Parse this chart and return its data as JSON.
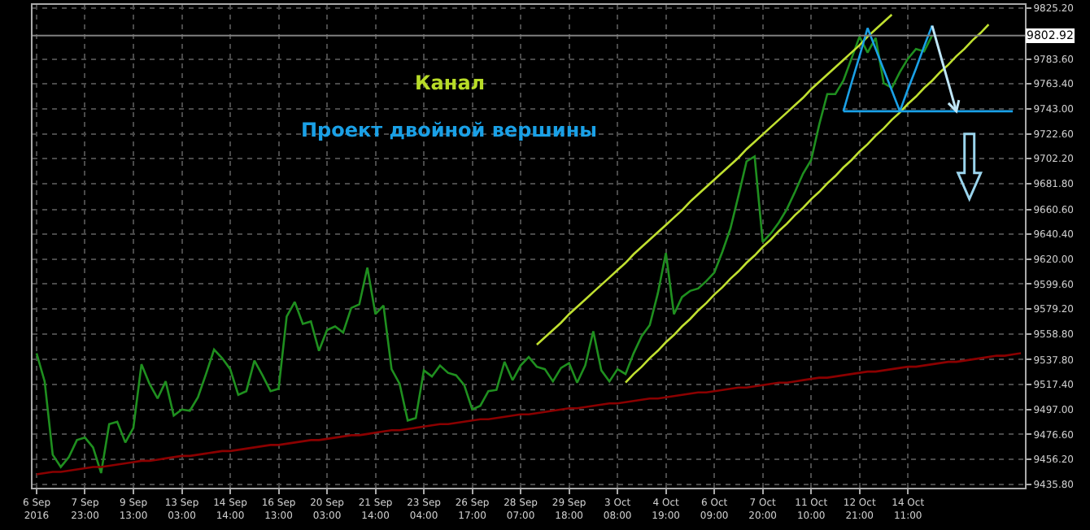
{
  "chart_data": {
    "type": "line",
    "annotations": [
      "Канал",
      "Проект двойной вершины"
    ],
    "categories": [
      "6 Sep 2016",
      null,
      null,
      null,
      null,
      null,
      "7 Sep 23:00",
      null,
      null,
      null,
      null,
      null,
      "9 Sep 13:00",
      null,
      null,
      null,
      null,
      null,
      "13 Sep 03:00",
      null,
      null,
      null,
      null,
      null,
      "14 Sep 14:00",
      null,
      null,
      null,
      null,
      null,
      "16 Sep 13:00",
      null,
      null,
      null,
      null,
      null,
      "20 Sep 03:00",
      null,
      null,
      null,
      null,
      null,
      "21 Sep 14:00",
      null,
      null,
      null,
      null,
      null,
      "23 Sep 04:00",
      null,
      null,
      null,
      null,
      null,
      "26 Sep 17:00",
      null,
      null,
      null,
      null,
      null,
      "28 Sep 07:00",
      null,
      null,
      null,
      null,
      null,
      "29 Sep 18:00",
      null,
      null,
      null,
      null,
      null,
      "3 Oct 08:00",
      null,
      null,
      null,
      null,
      null,
      "4 Oct 19:00",
      null,
      null,
      null,
      null,
      null,
      "6 Oct 09:00",
      null,
      null,
      null,
      null,
      null,
      "7 Oct 20:00",
      null,
      null,
      null,
      null,
      null,
      "11 Oct 10:00",
      null,
      null,
      null,
      null,
      null,
      "12 Oct 21:00",
      null,
      null,
      null,
      null,
      null,
      "14 Oct 11:00",
      null,
      null,
      null,
      null,
      null,
      null,
      null,
      null,
      null,
      null,
      null,
      null,
      null,
      null
    ],
    "ylim": [
      9433,
      9828
    ],
    "yticks": [
      {
        "value": 9435.8,
        "label": "9435.80"
      },
      {
        "value": 9456.2,
        "label": "9456.20"
      },
      {
        "value": 9476.6,
        "label": "9476.60"
      },
      {
        "value": 9497.0,
        "label": "9497.00"
      },
      {
        "value": 9517.4,
        "label": "9517.40"
      },
      {
        "value": 9537.8,
        "label": "9537.80"
      },
      {
        "value": 9558.8,
        "label": "9558.80"
      },
      {
        "value": 9579.2,
        "label": "9579.20"
      },
      {
        "value": 9599.6,
        "label": "9599.60"
      },
      {
        "value": 9620.0,
        "label": "9620.00"
      },
      {
        "value": 9640.4,
        "label": "9640.40"
      },
      {
        "value": 9660.6,
        "label": "9660.60"
      },
      {
        "value": 9681.8,
        "label": "9681.80"
      },
      {
        "value": 9702.2,
        "label": "9702.20"
      },
      {
        "value": 9722.6,
        "label": "9722.60"
      },
      {
        "value": 9743.0,
        "label": "9743.00"
      },
      {
        "value": 9763.4,
        "label": "9763.40"
      },
      {
        "value": 9783.6,
        "label": "9783.60"
      },
      {
        "value": 9825.2,
        "label": "9825.20"
      }
    ],
    "grid": true,
    "marker": "none",
    "line_style": "solid",
    "ref_lines": [
      {
        "axis": "y",
        "value": 9802.92,
        "label": "9802.92",
        "color": "#808080"
      }
    ],
    "series": [
      {
        "color": "#1f8f1f",
        "values": [
          9543,
          9520,
          9460,
          9450,
          9458,
          9472,
          9474,
          9466,
          9445,
          9485,
          9487,
          9470,
          9482,
          9534,
          9518,
          9506,
          9520,
          9492,
          9497,
          9496,
          9507,
          9526,
          9546,
          9539,
          9530,
          9509,
          9512,
          9537,
          9525,
          9512,
          9514,
          9573,
          9585,
          9567,
          9569,
          9545,
          9562,
          9565,
          9560,
          9580,
          9583,
          9613,
          9575,
          9582,
          9530,
          9518,
          9488,
          9490,
          9529,
          9524,
          9533,
          9527,
          9525,
          9517,
          9497,
          9500,
          9512,
          9513,
          9536,
          9521,
          9533,
          9540,
          9532,
          9530,
          9520,
          9531,
          9535,
          9519,
          9533,
          9561,
          9529,
          9520,
          9530,
          9526,
          9543,
          9557,
          9566,
          9592,
          9625,
          9575,
          9589,
          9594,
          9596,
          9602,
          9609,
          9626,
          9645,
          9672,
          9700,
          9704,
          9634,
          9641,
          9650,
          9661,
          9675,
          9690,
          9701,
          9730,
          9755,
          9755,
          9766,
          9784,
          9802,
          9789,
          9801,
          9764,
          9760,
          9773,
          9784,
          9792,
          9790,
          9803,
          null,
          null,
          null,
          null,
          null,
          null,
          null,
          null,
          null,
          null,
          null
        ]
      },
      {
        "color": "#8b0000",
        "values": [
          9444,
          9445,
          9446,
          9446,
          9447,
          9448,
          9449,
          9450,
          9450,
          9451,
          9452,
          9453,
          9454,
          9455,
          9455,
          9456,
          9457,
          9458,
          9459,
          9459,
          9460,
          9461,
          9462,
          9463,
          9463,
          9464,
          9465,
          9466,
          9467,
          9468,
          9468,
          9469,
          9470,
          9471,
          9472,
          9472,
          9473,
          9474,
          9475,
          9476,
          9476,
          9477,
          9478,
          9479,
          9480,
          9480,
          9481,
          9482,
          9483,
          9484,
          9485,
          9485,
          9486,
          9487,
          9488,
          9489,
          9489,
          9490,
          9491,
          9492,
          9493,
          9493,
          9494,
          9495,
          9496,
          9497,
          9498,
          9498,
          9499,
          9500,
          9501,
          9502,
          9502,
          9503,
          9504,
          9505,
          9506,
          9506,
          9507,
          9508,
          9509,
          9510,
          9511,
          9511,
          9512,
          9513,
          9514,
          9515,
          9515,
          9516,
          9517,
          9518,
          9519,
          9519,
          9520,
          9521,
          9522,
          9523,
          9523,
          9524,
          9525,
          9526,
          9527,
          9528,
          9528,
          9529,
          9530,
          9531,
          9532,
          9532,
          9533,
          9534,
          9535,
          9536,
          9536,
          9537,
          9538,
          9539,
          9540,
          9541,
          9541,
          9542,
          9543
        ]
      },
      {
        "color": "#c0e030",
        "values": [
          null,
          null,
          null,
          null,
          null,
          null,
          null,
          null,
          null,
          null,
          null,
          null,
          null,
          null,
          null,
          null,
          null,
          null,
          null,
          null,
          null,
          null,
          null,
          null,
          null,
          null,
          null,
          null,
          null,
          null,
          null,
          null,
          null,
          null,
          null,
          null,
          null,
          null,
          null,
          null,
          null,
          null,
          null,
          null,
          null,
          null,
          null,
          null,
          null,
          null,
          null,
          null,
          null,
          null,
          null,
          null,
          null,
          null,
          null,
          null,
          null,
          null,
          9550,
          9556,
          9562,
          9568,
          9575,
          9581,
          9587,
          9593,
          9599,
          9605,
          9611,
          9617,
          9624,
          9630,
          9636,
          9642,
          9648,
          9654,
          9660,
          9667,
          9673,
          9679,
          9685,
          9691,
          9697,
          9703,
          9710,
          9716,
          9722,
          9728,
          9734,
          9740,
          9746,
          9752,
          9759,
          9765,
          9771,
          9777,
          9783,
          9789,
          9795,
          9802,
          9808,
          9814,
          9820,
          null,
          null,
          null,
          null,
          null,
          null,
          null,
          null,
          null,
          null,
          null,
          null,
          null,
          null,
          null,
          null
        ]
      },
      {
        "color": "#c0e030",
        "values": [
          null,
          null,
          null,
          null,
          null,
          null,
          null,
          null,
          null,
          null,
          null,
          null,
          null,
          null,
          null,
          null,
          null,
          null,
          null,
          null,
          null,
          null,
          null,
          null,
          null,
          null,
          null,
          null,
          null,
          null,
          null,
          null,
          null,
          null,
          null,
          null,
          null,
          null,
          null,
          null,
          null,
          null,
          null,
          null,
          null,
          null,
          null,
          null,
          null,
          null,
          null,
          null,
          null,
          null,
          null,
          null,
          null,
          null,
          null,
          null,
          null,
          null,
          null,
          null,
          null,
          null,
          null,
          null,
          null,
          null,
          null,
          null,
          null,
          9519,
          9526,
          9532,
          9539,
          9545,
          9552,
          9558,
          9565,
          9571,
          9578,
          9584,
          9591,
          9597,
          9604,
          9610,
          9617,
          9623,
          9630,
          9636,
          9643,
          9649,
          9656,
          9662,
          9669,
          9675,
          9682,
          9688,
          9695,
          9701,
          9708,
          9714,
          9721,
          9727,
          9734,
          9740,
          9747,
          9753,
          9760,
          9766,
          9773,
          9779,
          9786,
          9792,
          9799,
          9805,
          9812,
          null,
          null,
          null,
          null
        ]
      },
      {
        "color": "#1aa0e6",
        "values": [
          null,
          null,
          null,
          null,
          null,
          null,
          null,
          null,
          null,
          null,
          null,
          null,
          null,
          null,
          null,
          null,
          null,
          null,
          null,
          null,
          null,
          null,
          null,
          null,
          null,
          null,
          null,
          null,
          null,
          null,
          null,
          null,
          null,
          null,
          null,
          null,
          null,
          null,
          null,
          null,
          null,
          null,
          null,
          null,
          null,
          null,
          null,
          null,
          null,
          null,
          null,
          null,
          null,
          null,
          null,
          null,
          null,
          null,
          null,
          null,
          null,
          null,
          null,
          null,
          null,
          null,
          null,
          null,
          null,
          null,
          null,
          null,
          null,
          null,
          null,
          null,
          null,
          null,
          null,
          null,
          null,
          null,
          null,
          null,
          null,
          null,
          null,
          null,
          null,
          null,
          null,
          null,
          null,
          null,
          null,
          null,
          null,
          null,
          null,
          null,
          9741,
          9764,
          9786,
          9809,
          9792,
          9775,
          9758,
          9741,
          9759,
          9776,
          9794,
          9811,
          null,
          null,
          null,
          null,
          null,
          null,
          null,
          null,
          null,
          null,
          null
        ]
      },
      {
        "color": "#1aa0e6",
        "values": [
          null,
          null,
          null,
          null,
          null,
          null,
          null,
          null,
          null,
          null,
          null,
          null,
          null,
          null,
          null,
          null,
          null,
          null,
          null,
          null,
          null,
          null,
          null,
          null,
          null,
          null,
          null,
          null,
          null,
          null,
          null,
          null,
          null,
          null,
          null,
          null,
          null,
          null,
          null,
          null,
          null,
          null,
          null,
          null,
          null,
          null,
          null,
          null,
          null,
          null,
          null,
          null,
          null,
          null,
          null,
          null,
          null,
          null,
          null,
          null,
          null,
          null,
          null,
          null,
          null,
          null,
          null,
          null,
          null,
          null,
          null,
          null,
          null,
          null,
          null,
          null,
          null,
          null,
          null,
          null,
          null,
          null,
          null,
          null,
          null,
          null,
          null,
          null,
          null,
          null,
          null,
          null,
          null,
          null,
          null,
          null,
          null,
          null,
          null,
          null,
          9741,
          9741,
          9741,
          9741,
          9741,
          9741,
          9741,
          9741,
          9741,
          9741,
          9741,
          9741,
          9741,
          9741,
          9741,
          9741,
          9741,
          9741,
          9741,
          9741,
          9741,
          9741,
          null
        ]
      }
    ]
  }
}
